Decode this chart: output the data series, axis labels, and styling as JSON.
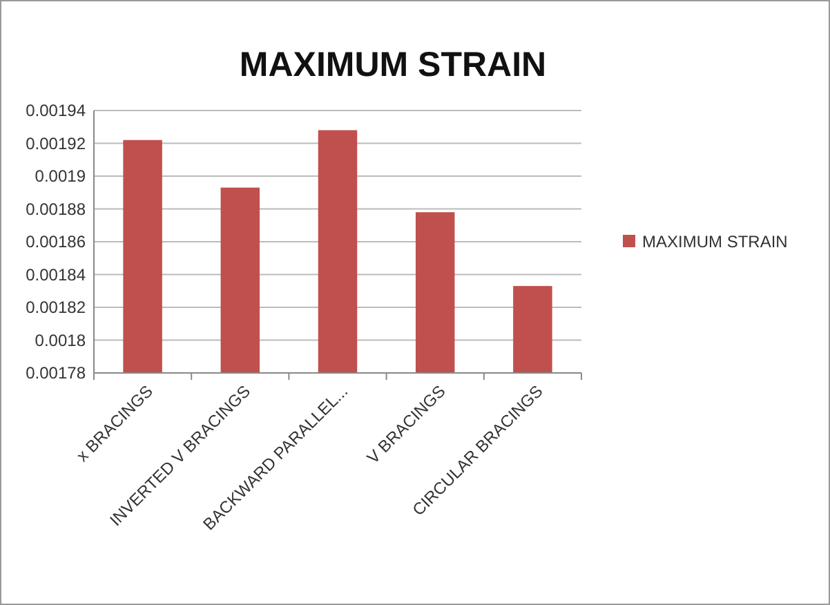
{
  "chart_data": {
    "type": "bar",
    "title": "MAXIMUM STRAIN",
    "categories": [
      "x BRACINGS",
      "INVERTED V BRACINGS",
      "BACKWARD PARALLEL...",
      "V BRACINGS",
      "CIRCULAR BRACINGS"
    ],
    "series": [
      {
        "name": "MAXIMUM STRAIN",
        "color": "#c0504d",
        "values": [
          0.001922,
          0.001893,
          0.001928,
          0.001878,
          0.001833
        ]
      }
    ],
    "ylim": [
      0.00178,
      0.00194
    ],
    "yticks": [
      0.00178,
      0.0018,
      0.00182,
      0.00184,
      0.00186,
      0.00188,
      0.0019,
      0.00192,
      0.00194
    ],
    "grid": "y",
    "legend": "right"
  }
}
